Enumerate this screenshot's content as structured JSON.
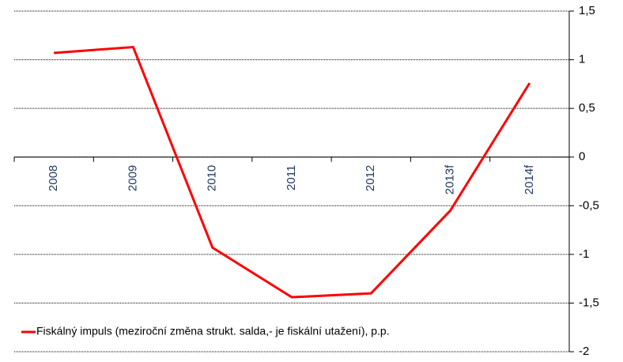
{
  "chart_data": {
    "type": "line",
    "categories": [
      "2008",
      "2009",
      "2010",
      "2011",
      "2012",
      "2013f",
      "2014f"
    ],
    "series": [
      {
        "name": "Fiskálný impuls (meziroční změna strukt. salda,- je fiskální utažení), p.p.",
        "color": "#ff0000",
        "values": [
          1.07,
          1.13,
          -0.93,
          -1.44,
          -1.4,
          -0.55,
          0.76
        ]
      }
    ],
    "ylim": [
      -2,
      1.5
    ],
    "yticks": [
      {
        "value": -2,
        "label": "-2"
      },
      {
        "value": -1.5,
        "label": "-1,5"
      },
      -1,
      {
        "value": -0.5,
        "label": "-0,5"
      },
      0,
      {
        "value": 0.5,
        "label": "0,5"
      },
      1,
      {
        "value": 1.5,
        "label": "1,5"
      }
    ],
    "grid": true,
    "legend": "bottom-left"
  }
}
